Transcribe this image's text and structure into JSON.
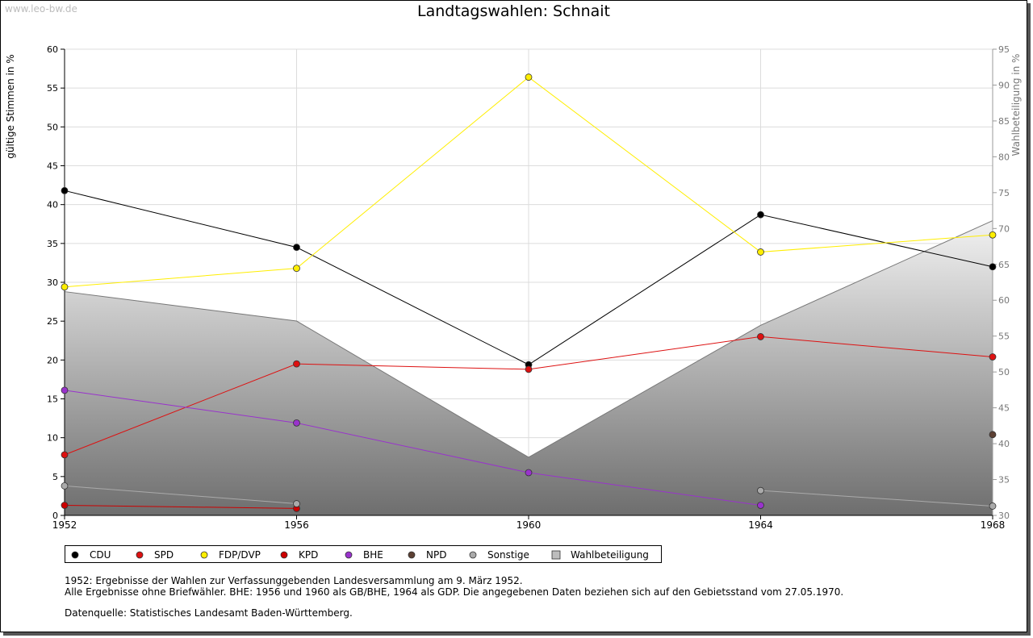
{
  "watermark": "www.leo-bw.de",
  "chart_data": {
    "type": "line",
    "title": "Landtagswahlen: Schnait",
    "ylabel": "gültige Stimmen in %",
    "y2label": "Wahlbeteiligung in %",
    "categories": [
      "1952",
      "1956",
      "1960",
      "1964",
      "1968"
    ],
    "ylim": [
      0,
      60
    ],
    "yticks": [
      0,
      5,
      10,
      15,
      20,
      25,
      30,
      35,
      40,
      45,
      50,
      55,
      60
    ],
    "y2lim": [
      30,
      95
    ],
    "y2ticks": [
      30,
      35,
      40,
      45,
      50,
      55,
      60,
      65,
      70,
      75,
      80,
      85,
      90,
      95
    ],
    "grid": true,
    "legend_position": "bottom-left",
    "area": {
      "name": "Wahlbeteiligung",
      "axis": "right",
      "values": [
        61.2,
        57.1,
        38.1,
        56.5,
        71.1
      ],
      "color": "#bdbdbd"
    },
    "series": [
      {
        "name": "CDU",
        "color": "#000000",
        "values": [
          41.8,
          34.5,
          19.4,
          38.7,
          32.0
        ]
      },
      {
        "name": "SPD",
        "color": "#dd1111",
        "values": [
          7.8,
          19.5,
          18.8,
          23.0,
          20.4
        ]
      },
      {
        "name": "FDP/DVP",
        "color": "#ffee00",
        "values": [
          29.4,
          31.8,
          56.4,
          33.9,
          36.1
        ]
      },
      {
        "name": "KPD",
        "color": "#cc0000",
        "values": [
          1.3,
          0.9,
          null,
          null,
          null
        ]
      },
      {
        "name": "BHE",
        "color": "#9933cc",
        "values": [
          16.1,
          11.9,
          5.5,
          1.3,
          null
        ]
      },
      {
        "name": "NPD",
        "color": "#5c4033",
        "values": [
          null,
          null,
          null,
          null,
          10.4
        ]
      },
      {
        "name": "Sonstige",
        "color": "#aaaaaa",
        "values": [
          3.8,
          1.5,
          null,
          3.2,
          1.2
        ]
      }
    ]
  },
  "notes": {
    "line1": "1952: Ergebnisse der Wahlen zur Verfassunggebenden Landesversammlung am 9. März 1952.",
    "line2": "Alle Ergebnisse ohne Briefwähler. BHE: 1956 und 1960 als GB/BHE, 1964 als GDP. Die angegebenen Daten beziehen sich auf den Gebietsstand vom 27.05.1970.",
    "line3": "Datenquelle: Statistisches Landesamt Baden-Württemberg."
  }
}
